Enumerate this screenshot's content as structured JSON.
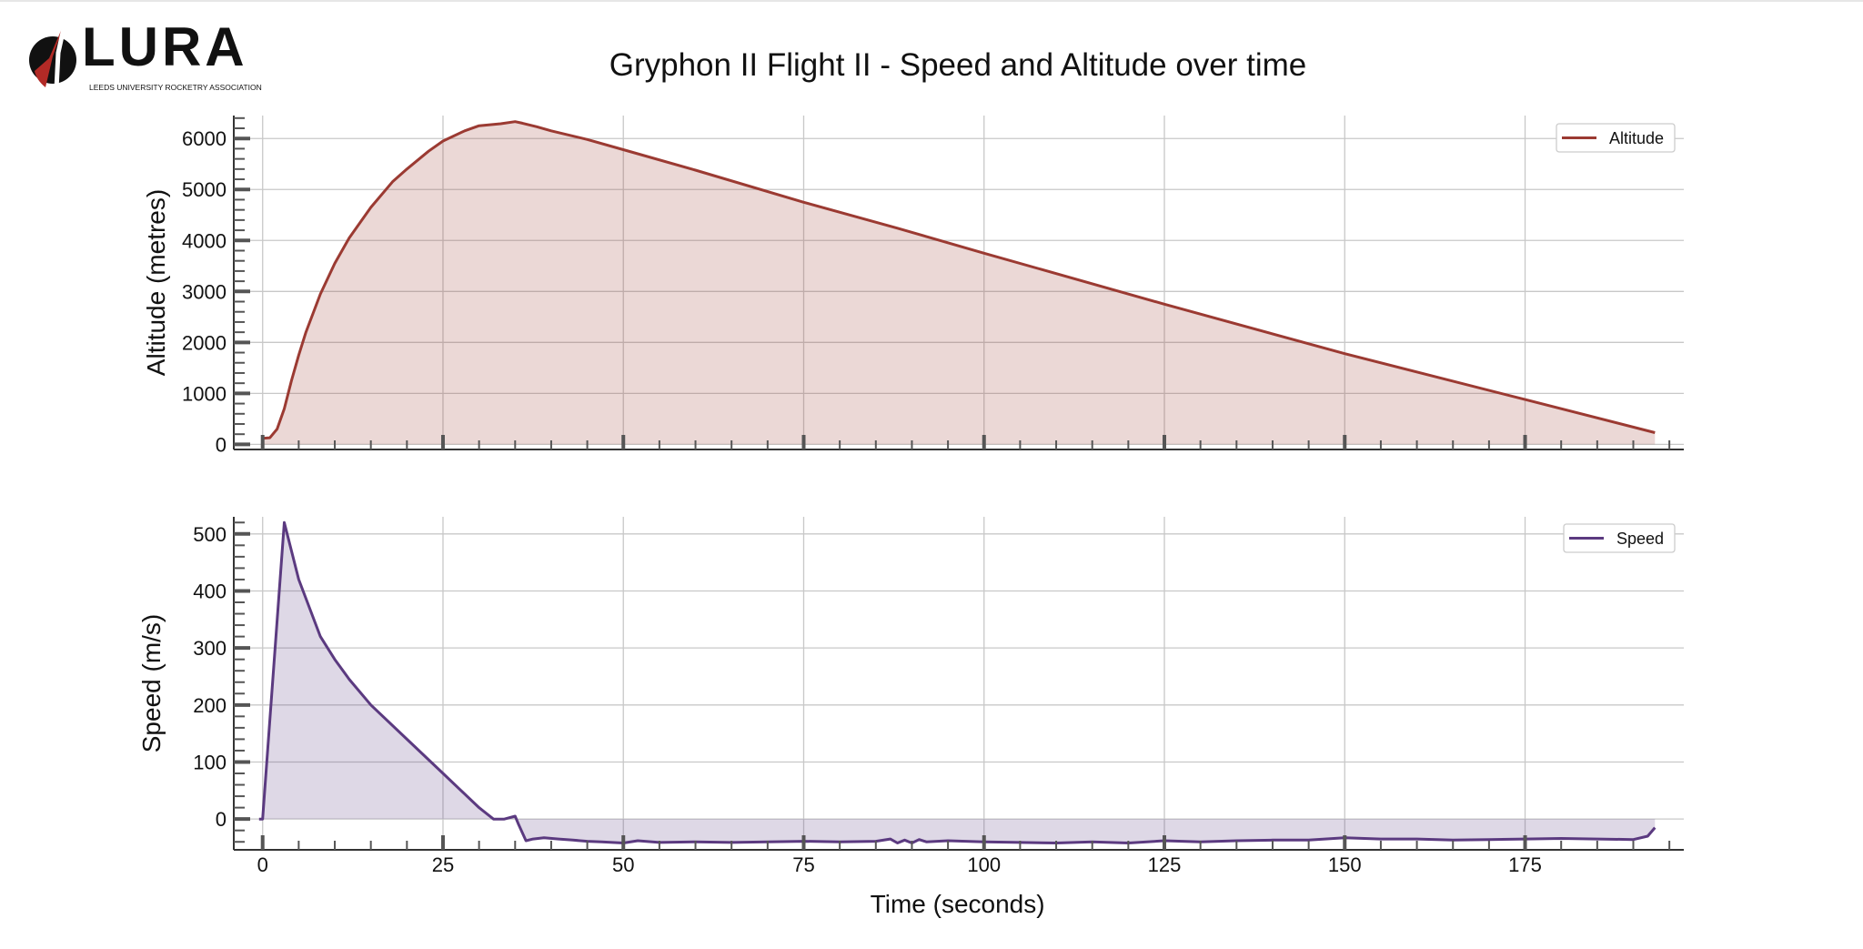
{
  "logo": {
    "name": "LURA",
    "subtitle": "LEEDS UNIVERSITY ROCKETRY ASSOCIATION"
  },
  "chart_data": [
    {
      "type": "area",
      "title": "Gryphon II Flight II - Speed and Altitude over time",
      "xlabel": "Time (seconds)",
      "ylabel": "Altitude (metres)",
      "xlim": [
        -4,
        197
      ],
      "ylim": [
        -100,
        6450
      ],
      "xticks": [
        0,
        25,
        50,
        75,
        100,
        125,
        150,
        175
      ],
      "yticks": [
        0,
        1000,
        2000,
        3000,
        4000,
        5000,
        6000
      ],
      "grid": true,
      "legend": {
        "position": "top-right",
        "entries": [
          "Altitude"
        ]
      },
      "color": "#9b3a32",
      "series": [
        {
          "name": "Altitude",
          "x": [
            0,
            1,
            2,
            3,
            4,
            5,
            6,
            8,
            10,
            12,
            15,
            18,
            20,
            23,
            25,
            28,
            30,
            33,
            35,
            36,
            38,
            40,
            45,
            50,
            60,
            75,
            88,
            100,
            125,
            150,
            175,
            193
          ],
          "values": [
            120,
            130,
            300,
            700,
            1250,
            1750,
            2200,
            2950,
            3550,
            4050,
            4650,
            5150,
            5400,
            5750,
            5950,
            6150,
            6250,
            6290,
            6330,
            6300,
            6230,
            6150,
            5980,
            5780,
            5380,
            4750,
            4240,
            3750,
            2750,
            1780,
            880,
            230
          ]
        }
      ]
    },
    {
      "type": "area",
      "xlabel": "Time (seconds)",
      "ylabel": "Speed (m/s)",
      "xlim": [
        -4,
        197
      ],
      "ylim": [
        -54,
        530
      ],
      "xticks": [
        0,
        25,
        50,
        75,
        100,
        125,
        150,
        175
      ],
      "yticks": [
        0,
        100,
        200,
        300,
        400,
        500
      ],
      "grid": true,
      "legend": {
        "position": "top-right",
        "entries": [
          "Speed"
        ]
      },
      "color": "#5b3a80",
      "series": [
        {
          "name": "Speed",
          "x": [
            -0.5,
            0,
            3,
            5,
            8,
            10,
            12,
            15,
            20,
            25,
            30,
            32,
            33.5,
            35,
            35.5,
            36.5,
            37.5,
            39,
            41,
            43,
            45,
            47,
            50,
            52,
            55,
            60,
            65,
            70,
            75,
            80,
            85,
            87,
            88,
            89,
            90,
            91,
            92,
            95,
            100,
            105,
            110,
            115,
            120,
            125,
            130,
            135,
            140,
            145,
            150,
            155,
            160,
            165,
            170,
            175,
            180,
            185,
            190,
            192,
            193
          ],
          "values": [
            0,
            0,
            520,
            420,
            320,
            280,
            245,
            200,
            140,
            80,
            20,
            0,
            0,
            5,
            -10,
            -38,
            -35,
            -33,
            -35,
            -37,
            -39,
            -40,
            -42,
            -38,
            -41,
            -40,
            -41,
            -40,
            -39,
            -40,
            -39,
            -35,
            -42,
            -37,
            -42,
            -36,
            -40,
            -38,
            -40,
            -41,
            -42,
            -40,
            -42,
            -38,
            -40,
            -38,
            -37,
            -37,
            -33,
            -35,
            -35,
            -37,
            -36,
            -35,
            -34,
            -35,
            -36,
            -30,
            -15
          ]
        }
      ]
    }
  ]
}
